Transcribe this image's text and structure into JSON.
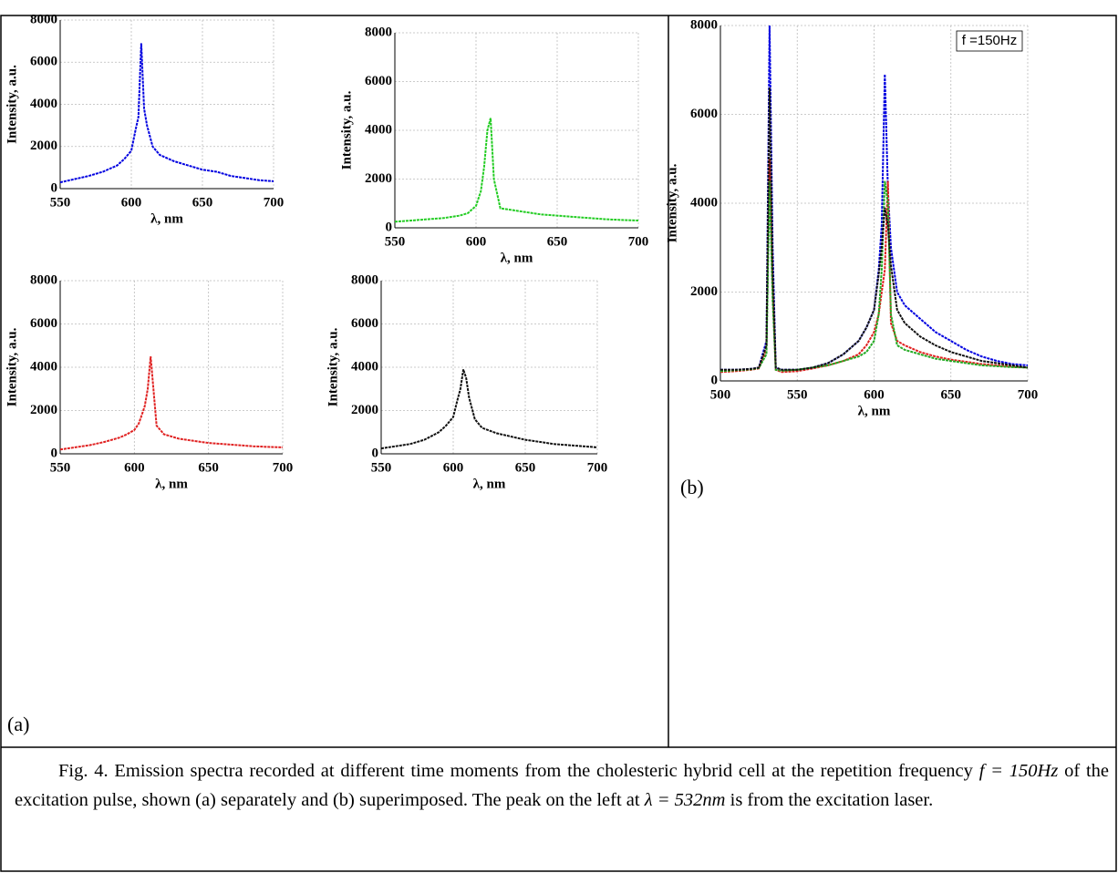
{
  "panels": [
    {
      "label": "(a)"
    },
    {
      "label": "(b)"
    }
  ],
  "caption": {
    "text1": "Fig. 4. Emission spectra recorded at different time moments from the cholesteric hybrid cell at the repetition frequency ",
    "math1": "f = 150Hz",
    "text2": " of the excitation pulse, shown (a) separately and (b) superimposed. The peak on the left at ",
    "math2": "λ = 532nm",
    "text3": " is from the excitation laser."
  },
  "chart_data": [
    {
      "type": "line",
      "xlabel": "λ, nm",
      "ylabel": "Intensity, a.u.",
      "xlim": [
        550,
        700
      ],
      "ylim": [
        0,
        8000
      ],
      "xticks": [
        550,
        600,
        650,
        700
      ],
      "yticks": [
        0,
        2000,
        4000,
        6000,
        8000
      ],
      "grid": true,
      "x": [
        550,
        560,
        570,
        580,
        590,
        595,
        600,
        603,
        605,
        607,
        609,
        611,
        615,
        620,
        630,
        640,
        650,
        660,
        670,
        680,
        690,
        700
      ],
      "series": [
        {
          "color": "#0000e0",
          "values": [
            300,
            450,
            600,
            800,
            1100,
            1400,
            1800,
            2800,
            3400,
            6900,
            3800,
            3000,
            2000,
            1600,
            1300,
            1100,
            900,
            800,
            600,
            500,
            400,
            350
          ]
        }
      ]
    },
    {
      "type": "line",
      "xlabel": "λ, nm",
      "ylabel": "Intensity, a.u.",
      "xlim": [
        550,
        700
      ],
      "ylim": [
        0,
        8000
      ],
      "xticks": [
        550,
        600,
        650,
        700
      ],
      "yticks": [
        0,
        2000,
        4000,
        6000,
        8000
      ],
      "grid": true,
      "x": [
        550,
        560,
        570,
        580,
        590,
        595,
        600,
        603,
        605,
        607,
        609,
        611,
        615,
        620,
        630,
        640,
        650,
        660,
        670,
        680,
        690,
        700
      ],
      "series": [
        {
          "color": "#22cc22",
          "values": [
            250,
            300,
            350,
            400,
            500,
            600,
            900,
            1500,
            2500,
            4000,
            4500,
            2000,
            800,
            750,
            650,
            550,
            500,
            450,
            400,
            350,
            320,
            300
          ]
        }
      ]
    },
    {
      "type": "line",
      "xlabel": "λ, nm",
      "ylabel": "Intensity, a.u.",
      "xlim": [
        550,
        700
      ],
      "ylim": [
        0,
        8000
      ],
      "xticks": [
        550,
        600,
        650,
        700
      ],
      "yticks": [
        0,
        2000,
        4000,
        6000,
        8000
      ],
      "grid": true,
      "x": [
        550,
        560,
        570,
        580,
        590,
        595,
        600,
        603,
        605,
        607,
        609,
        611,
        615,
        620,
        630,
        640,
        650,
        660,
        670,
        680,
        690,
        700
      ],
      "series": [
        {
          "color": "#e02020",
          "values": [
            200,
            300,
            400,
            550,
            750,
            900,
            1100,
            1400,
            1800,
            2200,
            3000,
            4500,
            1300,
            900,
            700,
            600,
            500,
            450,
            400,
            350,
            320,
            300
          ]
        }
      ]
    },
    {
      "type": "line",
      "xlabel": "λ, nm",
      "ylabel": "Intensity, a.u.",
      "xlim": [
        550,
        700
      ],
      "ylim": [
        0,
        8000
      ],
      "xticks": [
        550,
        600,
        650,
        700
      ],
      "yticks": [
        0,
        2000,
        4000,
        6000,
        8000
      ],
      "grid": true,
      "x": [
        550,
        560,
        570,
        580,
        590,
        595,
        600,
        603,
        605,
        607,
        609,
        611,
        615,
        620,
        630,
        640,
        650,
        660,
        670,
        680,
        690,
        700
      ],
      "series": [
        {
          "color": "#111111",
          "values": [
            250,
            350,
            450,
            650,
            1000,
            1300,
            1700,
            2500,
            3000,
            3900,
            3500,
            2600,
            1600,
            1200,
            950,
            800,
            650,
            550,
            450,
            400,
            350,
            300
          ]
        }
      ]
    },
    {
      "type": "line",
      "xlabel": "λ, nm",
      "ylabel": "Intensity, a.u.",
      "annotation": "f =150Hz",
      "xlim": [
        500,
        700
      ],
      "ylim": [
        0,
        8000
      ],
      "xticks": [
        500,
        550,
        600,
        650,
        700
      ],
      "yticks": [
        0,
        2000,
        4000,
        6000,
        8000
      ],
      "grid": true,
      "x": [
        500,
        510,
        520,
        525,
        530,
        532,
        534,
        536,
        540,
        550,
        560,
        570,
        580,
        590,
        595,
        600,
        603,
        605,
        607,
        609,
        611,
        615,
        620,
        630,
        640,
        650,
        660,
        670,
        680,
        690,
        700
      ],
      "series": [
        {
          "color": "#0000e0",
          "values": [
            250,
            250,
            270,
            300,
            900,
            8000,
            3000,
            300,
            250,
            250,
            300,
            400,
            600,
            900,
            1200,
            1600,
            2500,
            3500,
            6900,
            4300,
            3000,
            2000,
            1700,
            1400,
            1100,
            900,
            700,
            550,
            450,
            380,
            350
          ]
        },
        {
          "color": "#e02020",
          "values": [
            200,
            220,
            250,
            280,
            700,
            5000,
            2000,
            250,
            200,
            220,
            280,
            350,
            450,
            600,
            800,
            1100,
            1500,
            2000,
            2500,
            4500,
            1300,
            900,
            800,
            650,
            550,
            480,
            430,
            380,
            350,
            320,
            300
          ]
        },
        {
          "color": "#22aa22",
          "values": [
            220,
            240,
            260,
            290,
            600,
            4500,
            1800,
            250,
            230,
            250,
            300,
            350,
            450,
            550,
            650,
            900,
            1500,
            2500,
            4500,
            4000,
            1500,
            800,
            700,
            600,
            500,
            450,
            400,
            350,
            330,
            310,
            300
          ]
        },
        {
          "color": "#111111",
          "values": [
            250,
            250,
            270,
            300,
            800,
            6600,
            2500,
            300,
            250,
            250,
            300,
            400,
            600,
            900,
            1200,
            1600,
            2400,
            3000,
            3900,
            3500,
            2600,
            1600,
            1300,
            1000,
            800,
            650,
            550,
            450,
            400,
            350,
            300
          ]
        }
      ]
    }
  ]
}
